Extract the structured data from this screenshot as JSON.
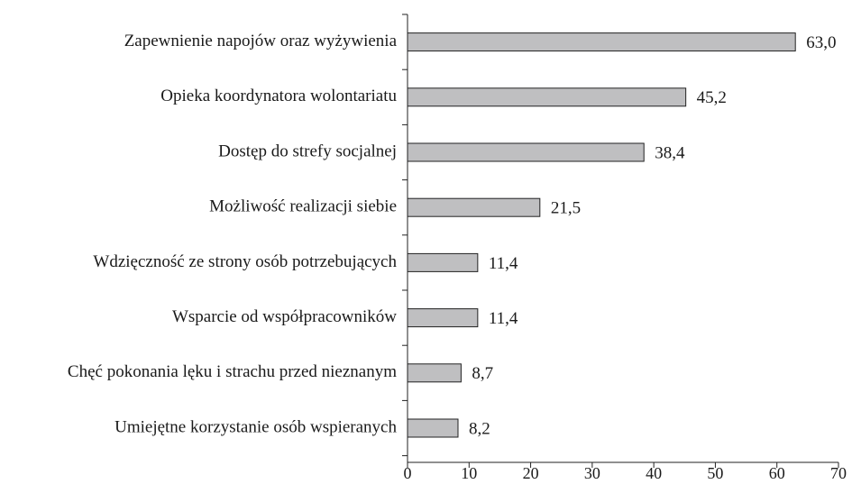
{
  "chart_data": {
    "type": "barh",
    "categories": [
      "Zapewnienie napojów oraz wyżywienia",
      "Opieka koordynatora wolontariatu",
      "Dostęp do strefy socjalnej",
      "Możliwość realizacji siebie",
      "Wdzięczność ze strony osób potrzebujących",
      "Wsparcie od współpracowników",
      "Chęć pokonania lęku i strachu przed nieznanym",
      "Umiejętne korzystanie osób wspieranych"
    ],
    "values": [
      63.0,
      45.2,
      38.4,
      21.5,
      11.4,
      11.4,
      8.7,
      8.2
    ],
    "value_labels": [
      "63,0",
      "45,2",
      "38,4",
      "21,5",
      "11,4",
      "11,4",
      "8,7",
      "8,2"
    ],
    "color": "#bfbfc1",
    "xlim": [
      0,
      70
    ],
    "xticks": [
      0,
      10,
      20,
      30,
      40,
      50,
      60,
      70
    ],
    "grid": false
  }
}
